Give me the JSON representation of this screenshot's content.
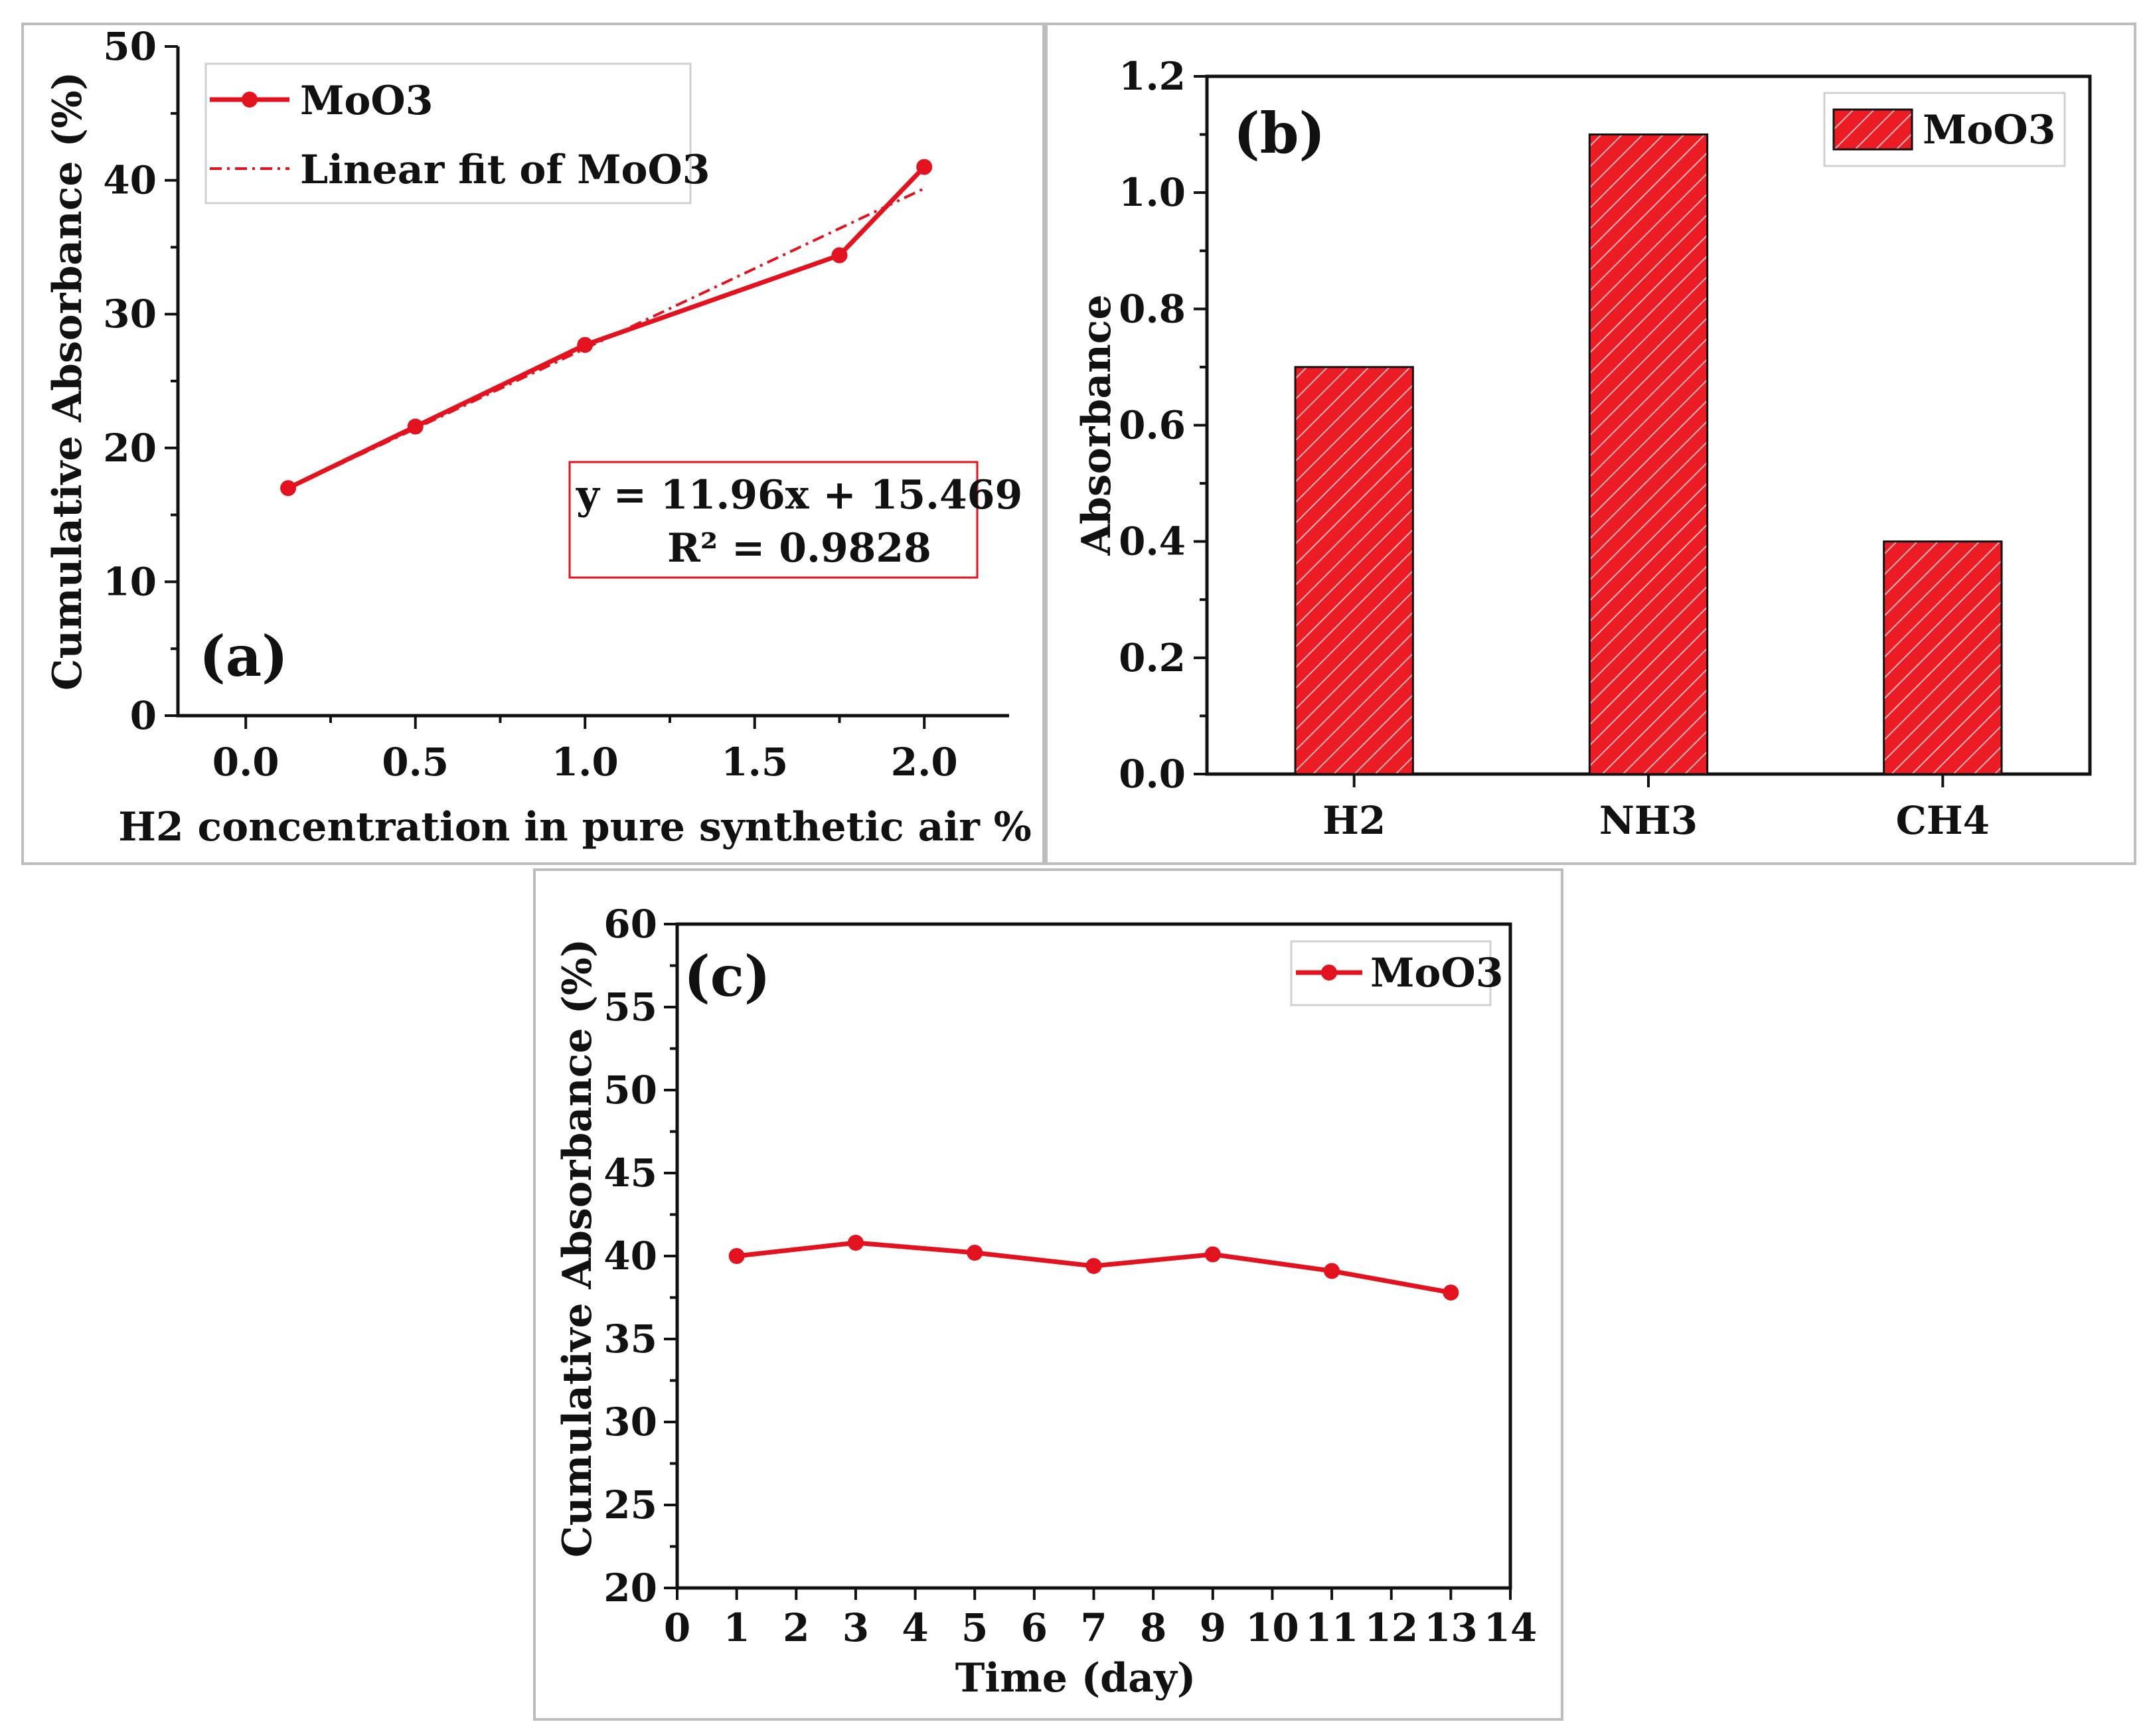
{
  "colors": {
    "series": "#e3121f",
    "bar_fill": "#ec1c24",
    "hatch": "#f8b3b8",
    "frame": "#bdbdbd",
    "axis": "#111111"
  },
  "chart_data": [
    {
      "id": "a",
      "type": "line",
      "panel_label": "(a)",
      "title": "",
      "xlabel": "H2 concentration in pure synthetic air %",
      "ylabel": "Cumulative Absorbance (%)",
      "xlim": [
        -0.2,
        2.25
      ],
      "ylim": [
        0,
        50
      ],
      "xticks": [
        0.0,
        0.5,
        1.0,
        1.5,
        2.0
      ],
      "yticks": [
        0,
        10,
        20,
        30,
        40,
        50
      ],
      "xtick_labels": [
        "0.0",
        "0.5",
        "1.0",
        "1.5",
        "2.0"
      ],
      "ytick_labels": [
        "0",
        "10",
        "20",
        "30",
        "40",
        "50"
      ],
      "series": [
        {
          "name": "MoO3",
          "style": "line-marker",
          "x": [
            0.125,
            0.5,
            1.0,
            1.75,
            2.0
          ],
          "y": [
            17.0,
            21.6,
            27.7,
            34.4,
            41.0
          ]
        }
      ],
      "fit": {
        "name": "Linear fit of MoO3",
        "style": "dash-dot",
        "slope": 11.96,
        "intercept": 15.469,
        "x_range": [
          0.125,
          2.0
        ]
      },
      "legend": [
        "MoO3",
        "Linear fit of MoO3"
      ],
      "legend_position": "top-left",
      "annotation": {
        "line1": "y = 11.96x + 15.469",
        "line2": "R² = 0.9828"
      }
    },
    {
      "id": "b",
      "type": "bar",
      "panel_label": "(b)",
      "title": "",
      "xlabel": "",
      "ylabel": "Absorbance",
      "categories": [
        "H2",
        "NH3",
        "CH4"
      ],
      "values": [
        0.7,
        1.1,
        0.4
      ],
      "ylim": [
        0,
        1.2
      ],
      "yticks": [
        0.0,
        0.2,
        0.4,
        0.6,
        0.8,
        1.0,
        1.2
      ],
      "ytick_labels": [
        "0.0",
        "0.2",
        "0.4",
        "0.6",
        "0.8",
        "1.0",
        "1.2"
      ],
      "series_name": "MoO3",
      "legend_position": "top-right"
    },
    {
      "id": "c",
      "type": "line",
      "panel_label": "(c)",
      "title": "",
      "xlabel": "Time (day)",
      "ylabel": "Cumulative Absorbance (%)",
      "xlim": [
        0,
        14
      ],
      "ylim": [
        20,
        60
      ],
      "xticks": [
        0,
        1,
        2,
        3,
        4,
        5,
        6,
        7,
        8,
        9,
        10,
        11,
        12,
        13,
        14
      ],
      "xtick_labels": [
        "0",
        "1",
        "2",
        "3",
        "4",
        "5",
        "6",
        "7",
        "8",
        "9",
        "10",
        "11",
        "12",
        "13",
        "14"
      ],
      "yticks": [
        20,
        25,
        30,
        35,
        40,
        45,
        50,
        55,
        60
      ],
      "ytick_labels": [
        "20",
        "25",
        "30",
        "35",
        "40",
        "45",
        "50",
        "55",
        "60"
      ],
      "series": [
        {
          "name": "MoO3",
          "x": [
            1,
            3,
            5,
            7,
            9,
            11,
            13
          ],
          "y": [
            40.0,
            40.8,
            40.2,
            39.4,
            40.1,
            39.1,
            37.8
          ]
        }
      ],
      "legend_position": "top-right"
    }
  ]
}
